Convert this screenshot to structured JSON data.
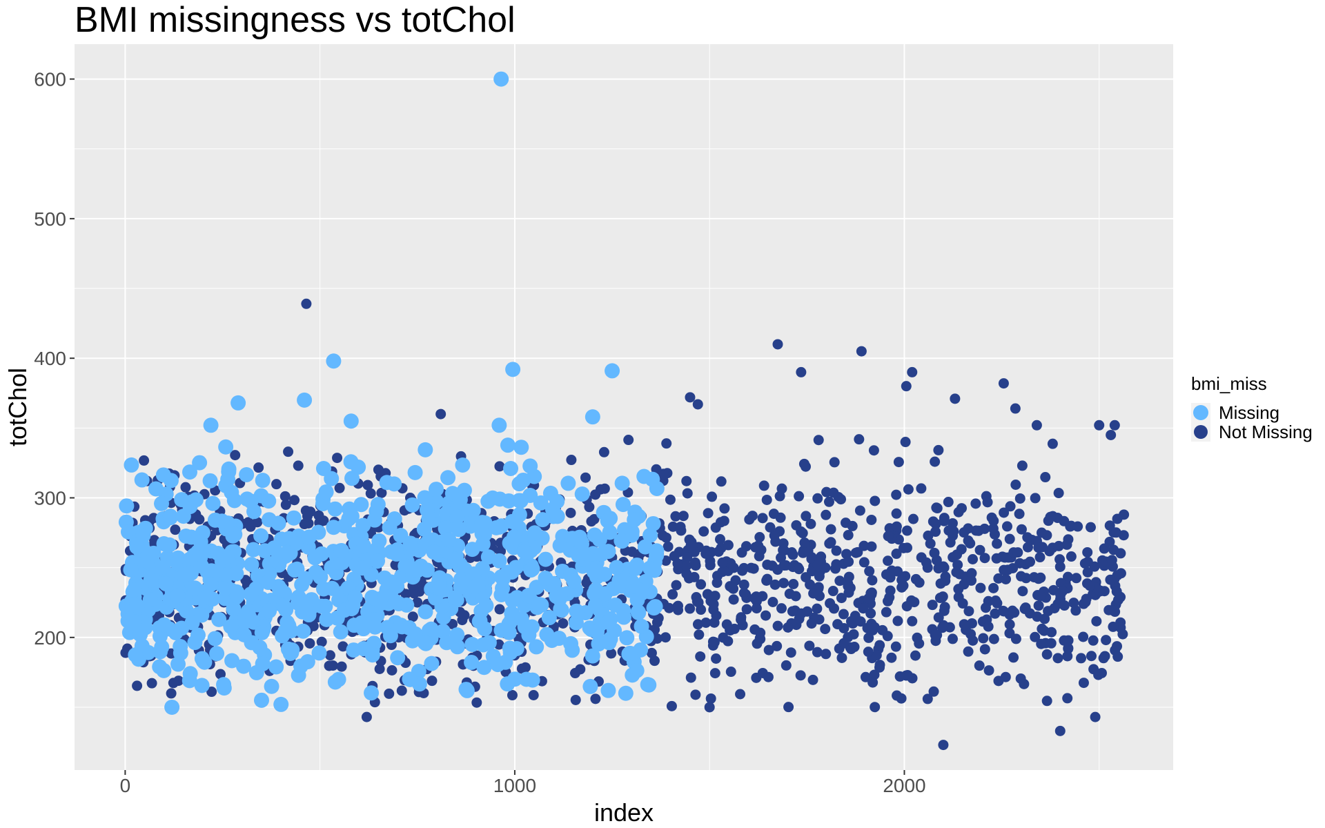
{
  "chart_data": {
    "type": "scatter",
    "title": "BMI missingness vs totChol",
    "xlabel": "index",
    "ylabel": "totChol",
    "xlim": [
      -130,
      2690
    ],
    "ylim": [
      105,
      625
    ],
    "x_ticks": [
      0,
      1000,
      2000
    ],
    "y_ticks": [
      200,
      300,
      400,
      500,
      600
    ],
    "grid": true,
    "legend": {
      "title": "bmi_miss",
      "placement": "right",
      "entries": [
        "Missing",
        "Not Missing"
      ]
    },
    "colors": {
      "Missing": "#63b8ff",
      "Not Missing": "#27408b",
      "panel": "#ebebeb",
      "grid": "#ffffff"
    },
    "series": [
      {
        "name": "Not Missing",
        "color": "#27408b",
        "size": "small",
        "notable_points": [
          [
            465,
            439
          ],
          [
            810,
            360
          ],
          [
            1450,
            372
          ],
          [
            1470,
            367
          ],
          [
            1675,
            410
          ],
          [
            1735,
            390
          ],
          [
            1890,
            405
          ],
          [
            2020,
            390
          ],
          [
            2005,
            380
          ],
          [
            2130,
            371
          ],
          [
            2255,
            382
          ],
          [
            2285,
            364
          ],
          [
            2100,
            123
          ],
          [
            2400,
            133
          ],
          [
            2490,
            143
          ],
          [
            2500,
            352
          ],
          [
            2530,
            345
          ],
          [
            620,
            143
          ],
          [
            1500,
            150
          ],
          [
            2340,
            352
          ],
          [
            2540,
            352
          ]
        ],
        "x_range": [
          0,
          2565
        ],
        "y_typical_range": [
          150,
          345
        ],
        "y_center": 240,
        "count_estimate": 1400
      },
      {
        "name": "Missing",
        "color": "#63b8ff",
        "size": "large",
        "notable_points": [
          [
            965,
            600
          ],
          [
            535,
            398
          ],
          [
            995,
            392
          ],
          [
            1250,
            391
          ],
          [
            460,
            370
          ],
          [
            290,
            368
          ],
          [
            1200,
            358
          ],
          [
            220,
            352
          ],
          [
            960,
            352
          ],
          [
            580,
            355
          ],
          [
            120,
            150
          ],
          [
            400,
            152
          ],
          [
            350,
            155
          ],
          [
            1030,
            170
          ],
          [
            1285,
            160
          ],
          [
            1240,
            162
          ]
        ],
        "x_range": [
          0,
          1365
        ],
        "y_typical_range": [
          160,
          340
        ],
        "y_center": 245,
        "count_estimate": 760
      }
    ]
  }
}
